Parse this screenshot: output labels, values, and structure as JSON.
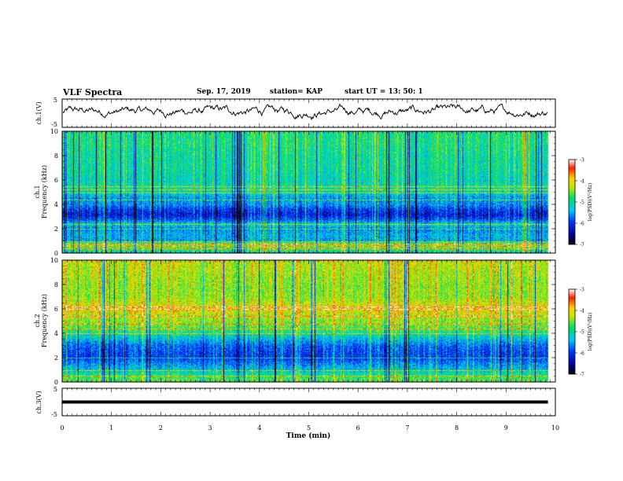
{
  "header": {
    "title": "VLF Spectra",
    "date": "Sep. 17, 2019",
    "station": "station= KAP",
    "start": "start  UT =   13: 50: 1"
  },
  "chart_data": [
    {
      "type": "line",
      "panel": "ch1-waveform",
      "ylabel": "ch.1(V)",
      "ylim": [
        -5,
        5
      ],
      "yticks": [
        "5",
        "-5"
      ],
      "xlim": [
        0,
        10
      ],
      "x_data_end": 9.85,
      "series": [
        {
          "values_approx_range": [
            -2,
            3
          ],
          "color": "#000000"
        }
      ]
    },
    {
      "type": "heatmap",
      "panel": "ch1-spectrogram",
      "ylabel": "ch.1 Frequency (kHz)",
      "ylim": [
        0,
        10
      ],
      "yticks": [
        "0",
        "2",
        "4",
        "6",
        "8",
        "10"
      ],
      "xlim": [
        0,
        10
      ],
      "x_data_end": 9.85,
      "colorbar": {
        "label": "log(PSD)(V²/Hz)",
        "range": [
          -7,
          -3
        ],
        "ticks": [
          "-3",
          "-4",
          "-5",
          "-6",
          "-7"
        ]
      },
      "profile": [
        {
          "f": 0.0,
          "v": -5.3
        },
        {
          "f": 0.4,
          "v": -4.6
        },
        {
          "f": 0.8,
          "v": -4.4
        },
        {
          "f": 1.0,
          "v": -5.5
        },
        {
          "f": 1.5,
          "v": -5.4
        },
        {
          "f": 2.0,
          "v": -5.6
        },
        {
          "f": 2.4,
          "v": -5.2
        },
        {
          "f": 2.8,
          "v": -5.9
        },
        {
          "f": 3.2,
          "v": -6.2
        },
        {
          "f": 3.6,
          "v": -6.0
        },
        {
          "f": 4.0,
          "v": -5.6
        },
        {
          "f": 4.6,
          "v": -5.5
        },
        {
          "f": 5.2,
          "v": -5.0
        },
        {
          "f": 6.0,
          "v": -5.1
        },
        {
          "f": 7.0,
          "v": -5.0
        },
        {
          "f": 8.0,
          "v": -5.0
        },
        {
          "f": 9.0,
          "v": -4.9
        },
        {
          "f": 10.0,
          "v": -4.9
        }
      ],
      "lines_khz": [
        0.4,
        0.6,
        0.8,
        1.0,
        2.0,
        2.4,
        4.4,
        5.0,
        5.2,
        5.5
      ]
    },
    {
      "type": "heatmap",
      "panel": "ch2-spectrogram",
      "ylabel": "ch.2 Frequency (kHz)",
      "ylim": [
        0,
        10
      ],
      "yticks": [
        "0",
        "2",
        "4",
        "6",
        "8",
        "10"
      ],
      "xlim": [
        0,
        10
      ],
      "x_data_end": 9.85,
      "colorbar": {
        "label": "log(PSD)(V²/Hz)",
        "range": [
          -7,
          -3
        ],
        "ticks": [
          "-3",
          "-4",
          "-5",
          "-6",
          "-7"
        ]
      },
      "profile": [
        {
          "f": 0.0,
          "v": -4.6
        },
        {
          "f": 0.5,
          "v": -4.8
        },
        {
          "f": 1.0,
          "v": -5.3
        },
        {
          "f": 1.5,
          "v": -5.6
        },
        {
          "f": 2.0,
          "v": -6.0
        },
        {
          "f": 2.6,
          "v": -5.9
        },
        {
          "f": 3.0,
          "v": -5.8
        },
        {
          "f": 3.6,
          "v": -5.3
        },
        {
          "f": 4.0,
          "v": -5.0
        },
        {
          "f": 4.5,
          "v": -4.6
        },
        {
          "f": 5.0,
          "v": -4.4
        },
        {
          "f": 5.6,
          "v": -4.2
        },
        {
          "f": 6.0,
          "v": -4.0
        },
        {
          "f": 6.5,
          "v": -4.2
        },
        {
          "f": 7.0,
          "v": -4.4
        },
        {
          "f": 8.0,
          "v": -4.4
        },
        {
          "f": 9.0,
          "v": -4.3
        },
        {
          "f": 10.0,
          "v": -4.2
        }
      ],
      "lines_khz": [
        0.5,
        1.0,
        2.0,
        4.0,
        4.4,
        4.8,
        5.4,
        6.0,
        6.2
      ]
    },
    {
      "type": "line",
      "panel": "ch3-waveform",
      "ylabel": "ch.3(V)",
      "ylim": [
        -5,
        5
      ],
      "yticks": [
        "5",
        "-5"
      ],
      "xlim": [
        0,
        10
      ],
      "x_data_end": 9.85,
      "series": [
        {
          "constant_value": 0,
          "color": "#000000"
        }
      ]
    }
  ],
  "xaxis": {
    "label": "Time  (min)",
    "ticks": [
      "0",
      "1",
      "2",
      "3",
      "4",
      "5",
      "6",
      "7",
      "8",
      "9",
      "10"
    ]
  }
}
